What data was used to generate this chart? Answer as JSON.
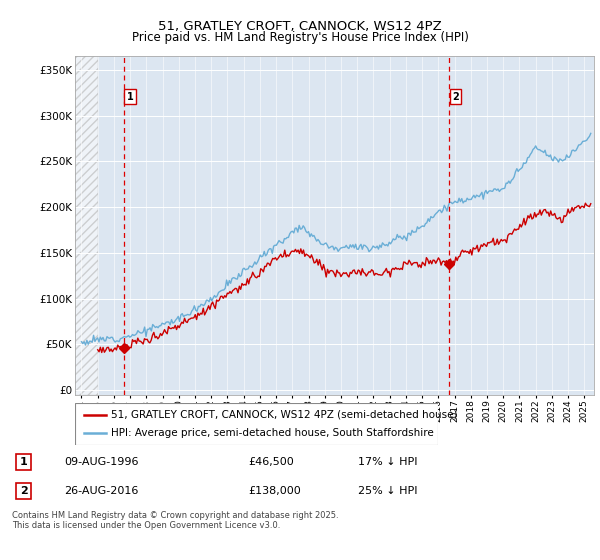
{
  "title": "51, GRATLEY CROFT, CANNOCK, WS12 4PZ",
  "subtitle": "Price paid vs. HM Land Registry's House Price Index (HPI)",
  "ylabel_values": [
    0,
    50000,
    100000,
    150000,
    200000,
    250000,
    300000,
    350000
  ],
  "ylabel_labels": [
    "£0",
    "£50K",
    "£100K",
    "£150K",
    "£200K",
    "£250K",
    "£300K",
    "£350K"
  ],
  "xlim_start": 1993.6,
  "xlim_end": 2025.6,
  "ylim_min": -5000,
  "ylim_max": 365000,
  "hpi_color": "#6aaed6",
  "price_color": "#cc0000",
  "dashed_line_color": "#dd0000",
  "background_color": "#dce6f1",
  "legend_label_price": "51, GRATLEY CROFT, CANNOCK, WS12 4PZ (semi-detached house)",
  "legend_label_hpi": "HPI: Average price, semi-detached house, South Staffordshire",
  "annotation1_date": "09-AUG-1996",
  "annotation1_price": "£46,500",
  "annotation1_hpi": "17% ↓ HPI",
  "annotation1_year": 1996.6,
  "annotation1_val": 46500,
  "annotation2_date": "26-AUG-2016",
  "annotation2_price": "£138,000",
  "annotation2_hpi": "25% ↓ HPI",
  "annotation2_year": 2016.65,
  "annotation2_val": 138000,
  "copyright_text": "Contains HM Land Registry data © Crown copyright and database right 2025.\nThis data is licensed under the Open Government Licence v3.0.",
  "hpi_start_year": 1994.0,
  "price_start_year": 1995.0
}
